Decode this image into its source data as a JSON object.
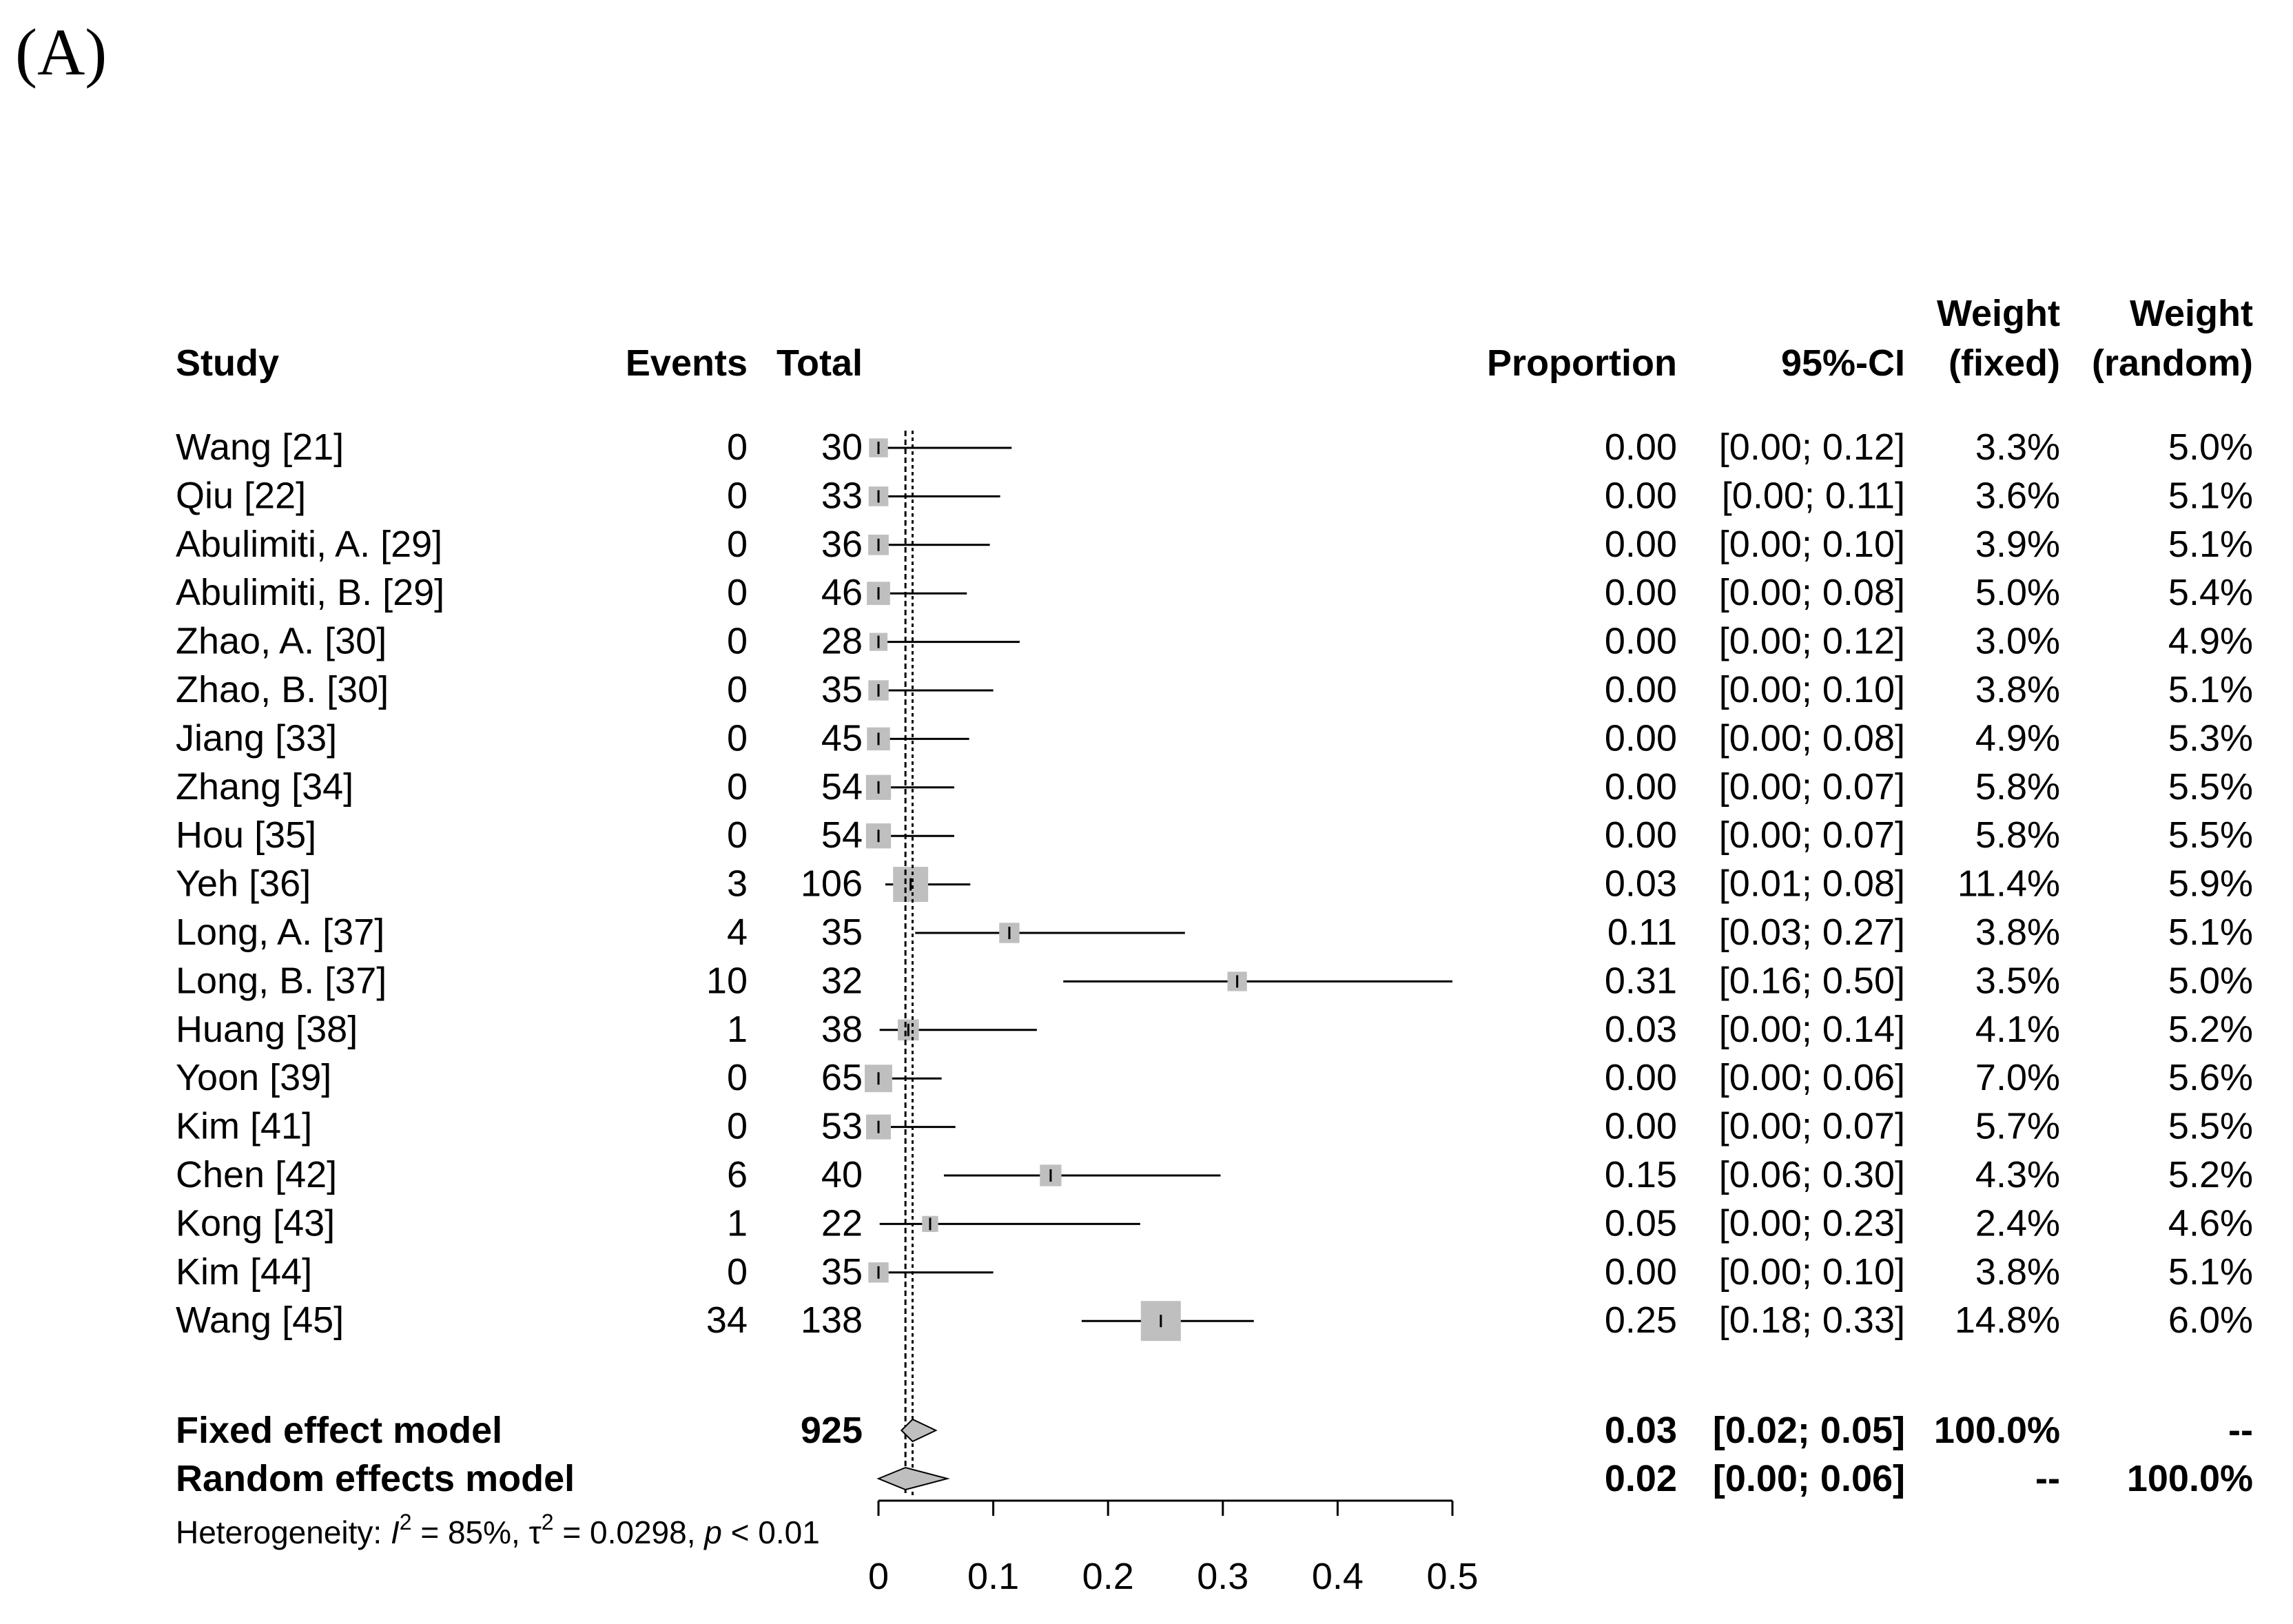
{
  "panel_label": "(A)",
  "chart_data": {
    "type": "forest",
    "headers": {
      "study": "Study",
      "events": "Events",
      "total": "Total",
      "proportion": "Proportion",
      "ci": "95%-CI",
      "weight_fixed_line1": "Weight",
      "weight_fixed_line2": "(fixed)",
      "weight_random_line1": "Weight",
      "weight_random_line2": "(random)"
    },
    "xlim": [
      0,
      0.5
    ],
    "x_ticks": [
      0,
      0.1,
      0.2,
      0.3,
      0.4,
      0.5
    ],
    "x_tick_labels": [
      "0",
      "0.1",
      "0.2",
      "0.3",
      "0.4",
      "0.5"
    ],
    "fixed_estimate_line": 0.0297,
    "random_estimate_line": 0.0235,
    "studies": [
      {
        "study": "Wang [21]",
        "events": "0",
        "total": "30",
        "proportion": 0.0,
        "lower": 0.0,
        "upper": 0.116,
        "prop_text": "0.00",
        "ci_text": "[0.00; 0.12]",
        "wf": 3.3,
        "wf_text": "3.3%",
        "wr_text": "5.0%"
      },
      {
        "study": "Qiu [22]",
        "events": "0",
        "total": "33",
        "proportion": 0.0,
        "lower": 0.0,
        "upper": 0.106,
        "prop_text": "0.00",
        "ci_text": "[0.00; 0.11]",
        "wf": 3.6,
        "wf_text": "3.6%",
        "wr_text": "5.1%"
      },
      {
        "study": "Abulimiti, A. [29]",
        "events": "0",
        "total": "36",
        "proportion": 0.0,
        "lower": 0.0,
        "upper": 0.097,
        "prop_text": "0.00",
        "ci_text": "[0.00; 0.10]",
        "wf": 3.9,
        "wf_text": "3.9%",
        "wr_text": "5.1%"
      },
      {
        "study": "Abulimiti, B. [29]",
        "events": "0",
        "total": "46",
        "proportion": 0.0,
        "lower": 0.0,
        "upper": 0.077,
        "prop_text": "0.00",
        "ci_text": "[0.00; 0.08]",
        "wf": 5.0,
        "wf_text": "5.0%",
        "wr_text": "5.4%"
      },
      {
        "study": "Zhao, A. [30]",
        "events": "0",
        "total": "28",
        "proportion": 0.0,
        "lower": 0.0,
        "upper": 0.123,
        "prop_text": "0.00",
        "ci_text": "[0.00; 0.12]",
        "wf": 3.0,
        "wf_text": "3.0%",
        "wr_text": "4.9%"
      },
      {
        "study": "Zhao, B. [30]",
        "events": "0",
        "total": "35",
        "proportion": 0.0,
        "lower": 0.0,
        "upper": 0.1,
        "prop_text": "0.00",
        "ci_text": "[0.00; 0.10]",
        "wf": 3.8,
        "wf_text": "3.8%",
        "wr_text": "5.1%"
      },
      {
        "study": "Jiang [33]",
        "events": "0",
        "total": "45",
        "proportion": 0.0,
        "lower": 0.0,
        "upper": 0.079,
        "prop_text": "0.00",
        "ci_text": "[0.00; 0.08]",
        "wf": 4.9,
        "wf_text": "4.9%",
        "wr_text": "5.3%"
      },
      {
        "study": "Zhang [34]",
        "events": "0",
        "total": "54",
        "proportion": 0.0,
        "lower": 0.0,
        "upper": 0.066,
        "prop_text": "0.00",
        "ci_text": "[0.00; 0.07]",
        "wf": 5.8,
        "wf_text": "5.8%",
        "wr_text": "5.5%"
      },
      {
        "study": "Hou [35]",
        "events": "0",
        "total": "54",
        "proportion": 0.0,
        "lower": 0.0,
        "upper": 0.066,
        "prop_text": "0.00",
        "ci_text": "[0.00; 0.07]",
        "wf": 5.8,
        "wf_text": "5.8%",
        "wr_text": "5.5%"
      },
      {
        "study": "Yeh [36]",
        "events": "3",
        "total": "106",
        "proportion": 0.028,
        "lower": 0.006,
        "upper": 0.08,
        "prop_text": "0.03",
        "ci_text": "[0.01; 0.08]",
        "wf": 11.4,
        "wf_text": "11.4%",
        "wr_text": "5.9%"
      },
      {
        "study": "Long, A. [37]",
        "events": "4",
        "total": "35",
        "proportion": 0.114,
        "lower": 0.032,
        "upper": 0.267,
        "prop_text": "0.11",
        "ci_text": "[0.03; 0.27]",
        "wf": 3.8,
        "wf_text": "3.8%",
        "wr_text": "5.1%"
      },
      {
        "study": "Long, B. [37]",
        "events": "10",
        "total": "32",
        "proportion": 0.3125,
        "lower": 0.161,
        "upper": 0.5,
        "prop_text": "0.31",
        "ci_text": "[0.16; 0.50]",
        "wf": 3.5,
        "wf_text": "3.5%",
        "wr_text": "5.0%"
      },
      {
        "study": "Huang [38]",
        "events": "1",
        "total": "38",
        "proportion": 0.026,
        "lower": 0.001,
        "upper": 0.138,
        "prop_text": "0.03",
        "ci_text": "[0.00; 0.14]",
        "wf": 4.1,
        "wf_text": "4.1%",
        "wr_text": "5.2%"
      },
      {
        "study": "Yoon [39]",
        "events": "0",
        "total": "65",
        "proportion": 0.0,
        "lower": 0.0,
        "upper": 0.055,
        "prop_text": "0.00",
        "ci_text": "[0.00; 0.06]",
        "wf": 7.0,
        "wf_text": "7.0%",
        "wr_text": "5.6%"
      },
      {
        "study": "Kim [41]",
        "events": "0",
        "total": "53",
        "proportion": 0.0,
        "lower": 0.0,
        "upper": 0.067,
        "prop_text": "0.00",
        "ci_text": "[0.00; 0.07]",
        "wf": 5.7,
        "wf_text": "5.7%",
        "wr_text": "5.5%"
      },
      {
        "study": "Chen [42]",
        "events": "6",
        "total": "40",
        "proportion": 0.15,
        "lower": 0.057,
        "upper": 0.298,
        "prop_text": "0.15",
        "ci_text": "[0.06; 0.30]",
        "wf": 4.3,
        "wf_text": "4.3%",
        "wr_text": "5.2%"
      },
      {
        "study": "Kong [43]",
        "events": "1",
        "total": "22",
        "proportion": 0.045,
        "lower": 0.001,
        "upper": 0.228,
        "prop_text": "0.05",
        "ci_text": "[0.00; 0.23]",
        "wf": 2.4,
        "wf_text": "2.4%",
        "wr_text": "4.6%"
      },
      {
        "study": "Kim [44]",
        "events": "0",
        "total": "35",
        "proportion": 0.0,
        "lower": 0.0,
        "upper": 0.1,
        "prop_text": "0.00",
        "ci_text": "[0.00; 0.10]",
        "wf": 3.8,
        "wf_text": "3.8%",
        "wr_text": "5.1%"
      },
      {
        "study": "Wang [45]",
        "events": "34",
        "total": "138",
        "proportion": 0.246,
        "lower": 0.177,
        "upper": 0.327,
        "prop_text": "0.25",
        "ci_text": "[0.18; 0.33]",
        "wf": 14.8,
        "wf_text": "14.8%",
        "wr_text": "6.0%"
      }
    ],
    "summaries": [
      {
        "label": "Fixed effect model",
        "total": "925",
        "estimate": 0.0297,
        "lower": 0.02,
        "upper": 0.05,
        "prop_text": "0.03",
        "ci_text": "[0.02; 0.05]",
        "wf_text": "100.0%",
        "wr_text": "--"
      },
      {
        "label": "Random effects model",
        "total": "",
        "estimate": 0.0235,
        "lower": 0.0,
        "upper": 0.06,
        "prop_text": "0.02",
        "ci_text": "[0.00; 0.06]",
        "wf_text": "--",
        "wr_text": "100.0%"
      }
    ],
    "heterogeneity": {
      "prefix": "Heterogeneity: ",
      "i2_symbol": "I",
      "i2_exp": "2",
      "i2_value": " = 85%, ",
      "tau_symbol": "τ",
      "tau_exp": "2",
      "tau_value": " = 0.0298, ",
      "p_symbol": "p",
      "p_value": " < 0.01"
    }
  }
}
